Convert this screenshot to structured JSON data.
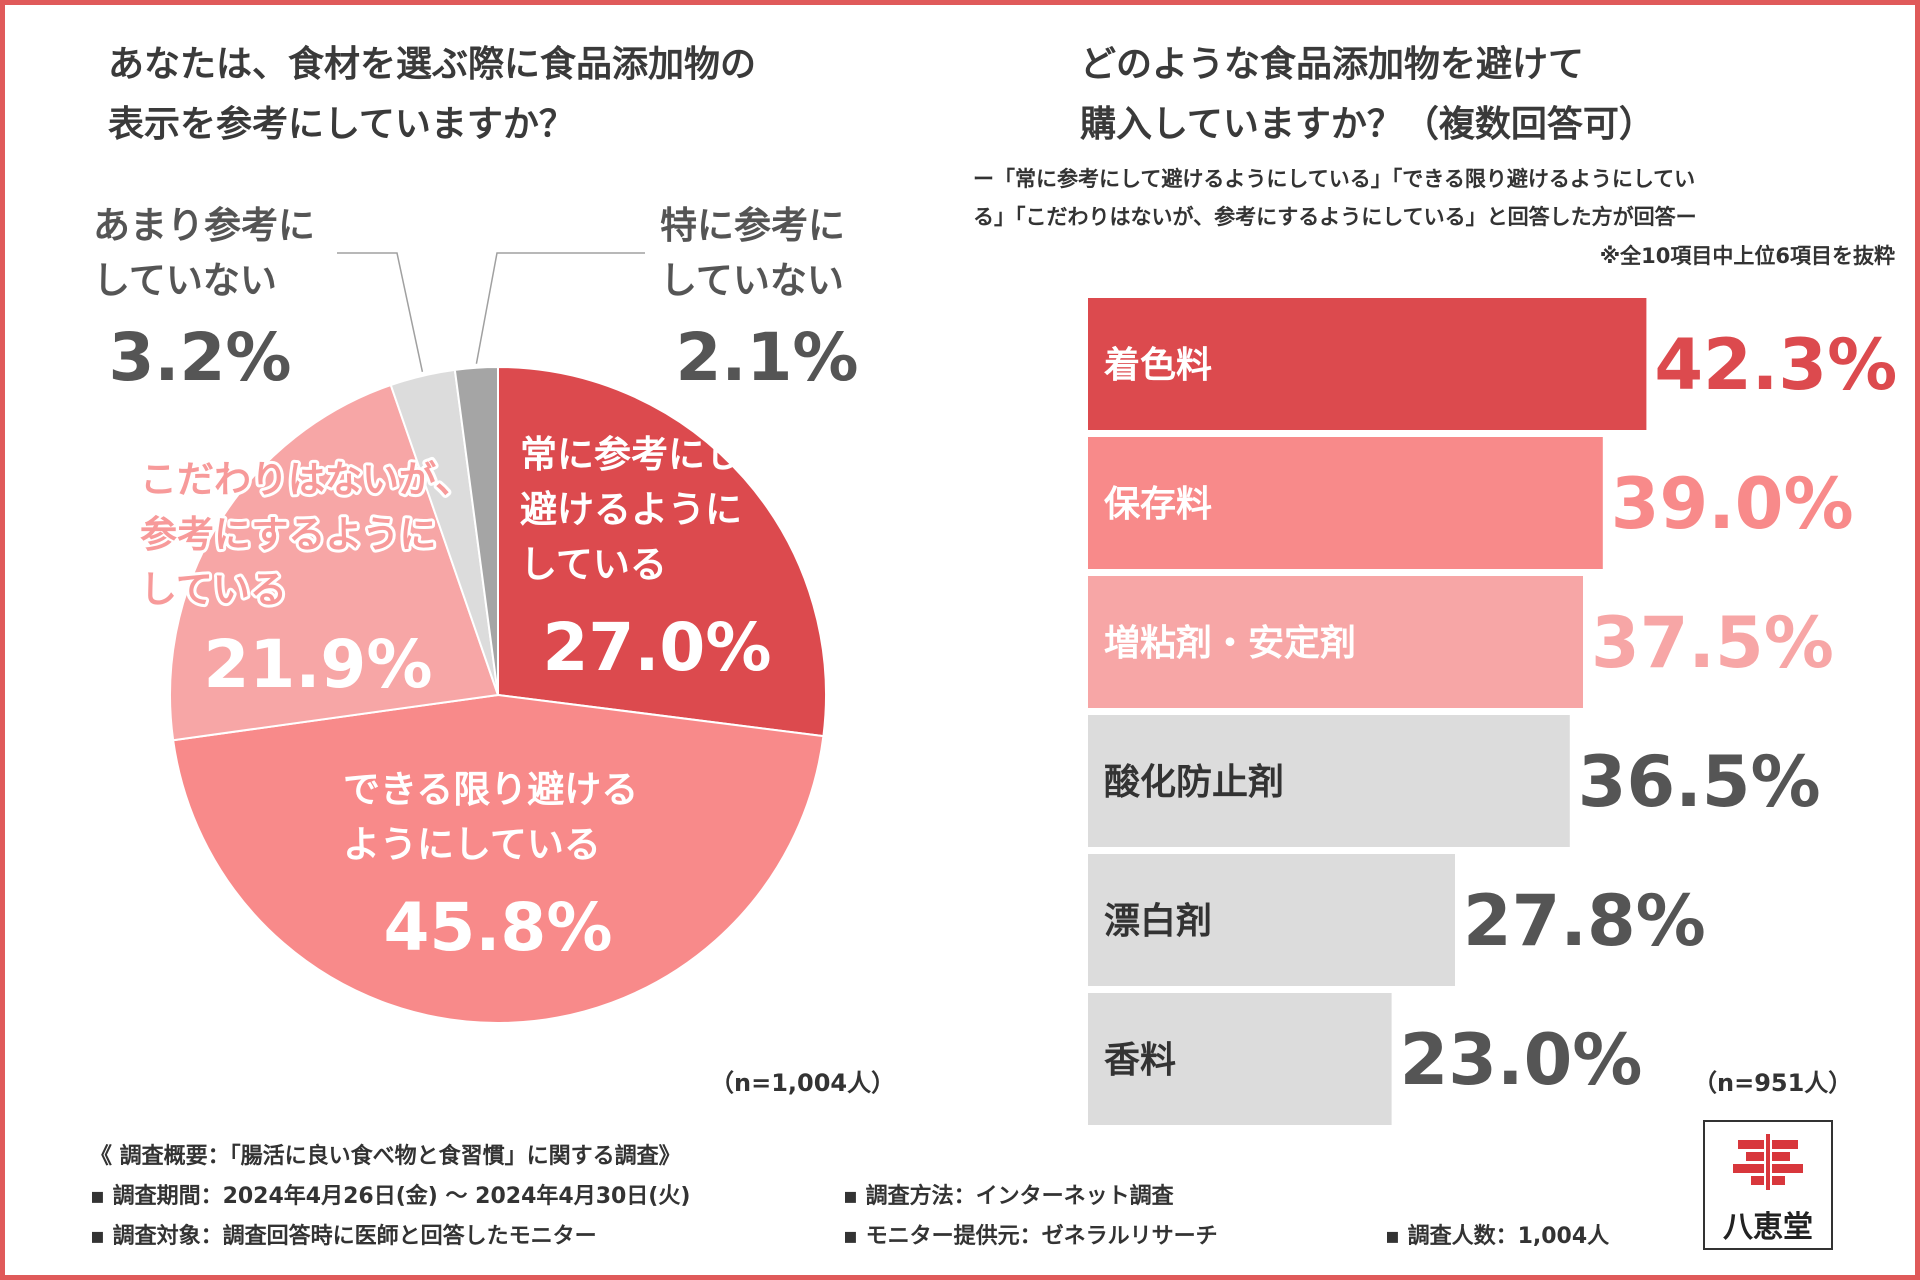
{
  "chart_data": [
    {
      "type": "pie",
      "title": "あなたは、食材を選ぶ際に食品添加物の表示を参考にしていますか？",
      "title_lines": [
        "あなたは、食材を選ぶ際に食品添加物の",
        "表示を参考にしていますか？"
      ],
      "categories": [
        "常に参考にして避けるようにしている",
        "できる限り避けるようにしている",
        "こだわりはないが、参考にするようにしている",
        "あまり参考にしていない",
        "特に参考にしていない"
      ],
      "values": [
        27.0,
        45.8,
        21.9,
        3.2,
        2.1
      ],
      "colors": [
        "#dc4a4e",
        "#f88a8a",
        "#f7a6a6",
        "#dcdcdc",
        "#a5a5a5"
      ],
      "labels": [
        {
          "lines": [
            "常に参考にして",
            "避けるように",
            "している"
          ],
          "value": "27.0%"
        },
        {
          "lines": [
            "できる限り避ける",
            "ようにしている"
          ],
          "value": "45.8%"
        },
        {
          "lines": [
            "こだわりはないが、",
            "参考にするように",
            "している"
          ],
          "value": "21.9%"
        },
        {
          "lines": [
            "あまり参考に",
            "していない"
          ],
          "value": "3.2%"
        },
        {
          "lines": [
            "特に参考に",
            "していない"
          ],
          "value": "2.1%"
        }
      ],
      "n_note": "（n=1,004人）"
    },
    {
      "type": "bar",
      "orientation": "horizontal",
      "title": "どのような食品添加物を避けて購入していますか？（複数回答可）",
      "title_lines": [
        "どのような食品添加物を避けて",
        "購入していますか？（複数回答可）"
      ],
      "subtitle_lines": [
        "ー「常に参考にして避けるようにしている」「できる限り避けるようにしてい",
        "る」「こだわりはないが、参考にするようにしている」と回答した方が回答ー"
      ],
      "note": "※全10項目中上位6項目を抜粋",
      "categories": [
        "着色料",
        "保存料",
        "増粘剤・安定剤",
        "酸化防止剤",
        "漂白剤",
        "香料"
      ],
      "values": [
        42.3,
        39.0,
        37.5,
        36.5,
        27.8,
        23.0
      ],
      "value_labels": [
        "42.3%",
        "39.0%",
        "37.5%",
        "36.5%",
        "27.8%",
        "23.0%"
      ],
      "bar_colors": [
        "#dc4a4e",
        "#f88a8a",
        "#f7a6a6",
        "#dcdcdc",
        "#dcdcdc",
        "#dcdcdc"
      ],
      "label_colors": [
        "#ffffff",
        "#ffffff",
        "#ffffff",
        "#333333",
        "#333333",
        "#333333"
      ],
      "value_colors": [
        "#dc4a4e",
        "#f88a8a",
        "#f7a6a6",
        "#555555",
        "#555555",
        "#555555"
      ],
      "n_note": "（n=951人）"
    }
  ],
  "survey": {
    "title": "《 調査概要：「腸活に良い食べ物と食習慣」に関する調査》",
    "period": "▪ 調査期間：2024年4月26日(金) 〜 2024年4月30日(火)",
    "method": "▪ 調査方法：インターネット調査",
    "target": "▪ 調査対象：調査回答時に医師と回答したモニター",
    "provider": "▪ モニター提供元：ゼネラルリサーチ",
    "count": "▪ 調査人数：1,004人"
  },
  "logo": {
    "text": "八恵堂"
  },
  "colors": {
    "frame": "#e05a5a",
    "text": "#333333"
  }
}
